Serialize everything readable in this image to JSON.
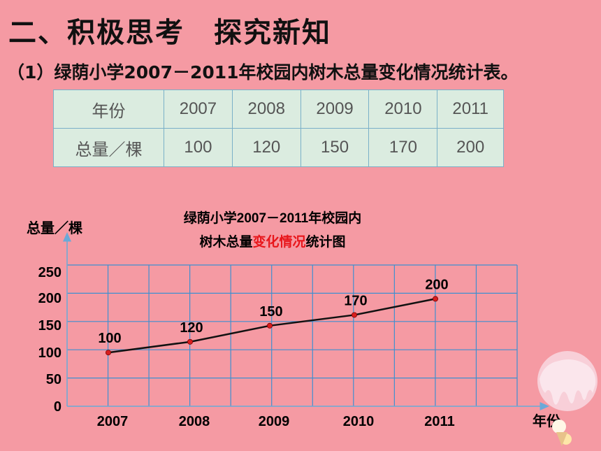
{
  "heading": "二、积极思考　探究新知",
  "subheading": "（1）绿荫小学2007－2011年校园内树木总量变化情况统计表。",
  "table": {
    "row1_label": "年份",
    "row2_label": "总量／棵",
    "years": [
      "2007",
      "2008",
      "2009",
      "2010",
      "2011"
    ],
    "totals": [
      "100",
      "120",
      "150",
      "170",
      "200"
    ]
  },
  "chart_data": {
    "type": "line",
    "title_line1": "绿荫小学2007－2011年校园内",
    "title_line2_prefix": "树木总量",
    "title_line2_highlight": "变化情况",
    "title_line2_suffix": "统计图",
    "ylabel": "总量／棵",
    "xlabel": "年份",
    "categories": [
      "2007",
      "2008",
      "2009",
      "2010",
      "2011"
    ],
    "values": [
      100,
      120,
      150,
      170,
      200
    ],
    "yticks": [
      0,
      50,
      100,
      150,
      200,
      250
    ],
    "ylim": [
      0,
      250
    ],
    "grid": true,
    "colors": {
      "background": "#f59aa3",
      "grid": "#3e8fd0",
      "line": "#111111",
      "point": "#d81e1e",
      "highlight": "#e8161b"
    }
  }
}
